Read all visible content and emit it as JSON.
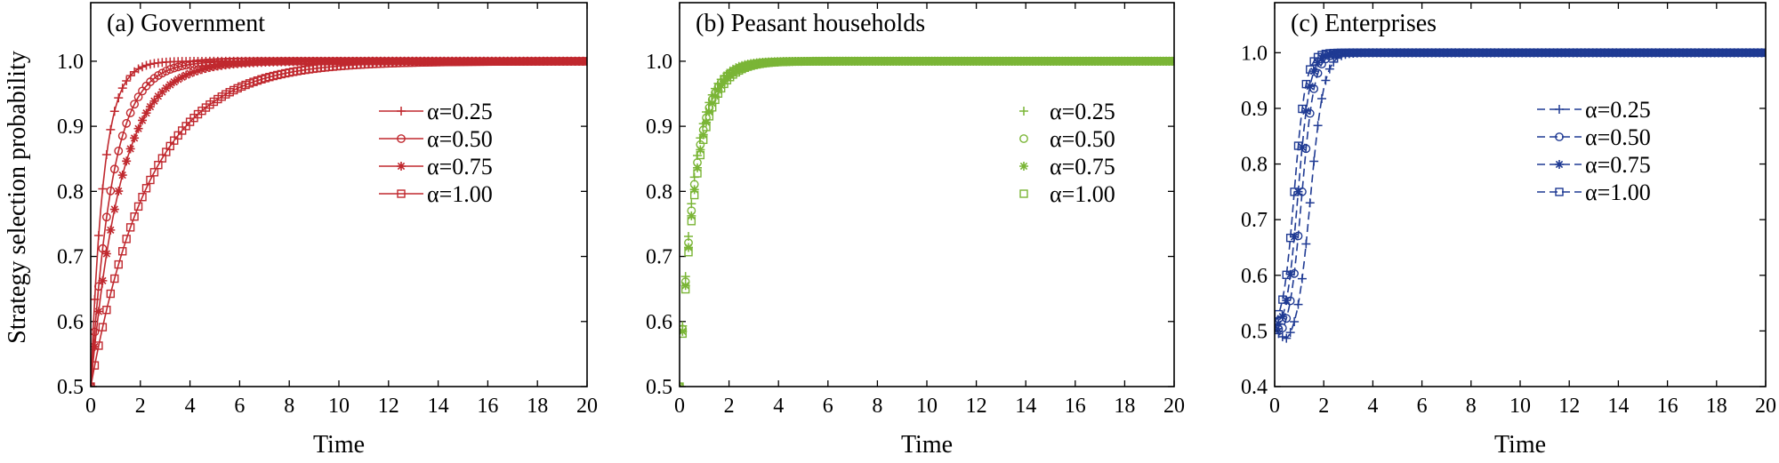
{
  "figure": {
    "ylabel": "Strategy selection probability"
  },
  "chart_data": [
    {
      "type": "line",
      "title": "(a) Government",
      "xlabel": "Time",
      "xlim": [
        0,
        20
      ],
      "ylim": [
        0.5,
        1.09
      ],
      "xticks": [
        0,
        2,
        4,
        6,
        8,
        10,
        12,
        14,
        16,
        18,
        20
      ],
      "yticks": [
        0.5,
        0.6,
        0.7,
        0.8,
        0.9,
        1.0
      ],
      "ytick_labels": [
        "0.5",
        "0.6",
        "0.7",
        "0.8",
        "0.9",
        "1.0"
      ],
      "color": "#c0282e",
      "line_style": "solid",
      "legend_position": "center-right",
      "y0": 0.5,
      "series": [
        {
          "name": "α=0.25",
          "marker": "plus",
          "rate": 1.95
        },
        {
          "name": "α=0.50",
          "marker": "circle",
          "rate": 1.15
        },
        {
          "name": "α=0.75",
          "marker": "star",
          "rate": 0.82
        },
        {
          "name": "α=1.00",
          "marker": "square",
          "rate": 0.42
        }
      ]
    },
    {
      "type": "scatter",
      "title": "(b) Peasant households",
      "xlabel": "Time",
      "xlim": [
        0,
        20
      ],
      "ylim": [
        0.5,
        1.09
      ],
      "xticks": [
        0,
        2,
        4,
        6,
        8,
        10,
        12,
        14,
        16,
        18,
        20
      ],
      "yticks": [
        0.5,
        0.6,
        0.7,
        0.8,
        0.9,
        1.0
      ],
      "ytick_labels": [
        "0.5",
        "0.6",
        "0.7",
        "0.8",
        "0.9",
        "1.0"
      ],
      "color": "#7ab536",
      "line_style": "none",
      "legend_position": "center-right",
      "y0": 0.5,
      "series": [
        {
          "name": "α=0.25",
          "marker": "plus",
          "rate": 1.72
        },
        {
          "name": "α=0.50",
          "marker": "circle",
          "rate": 1.62
        },
        {
          "name": "α=0.75",
          "marker": "star",
          "rate": 1.55
        },
        {
          "name": "α=1.00",
          "marker": "square",
          "rate": 1.48
        }
      ]
    },
    {
      "type": "line",
      "title": "(c) Enterprises",
      "xlabel": "Time",
      "xlim": [
        0,
        20
      ],
      "ylim": [
        0.4,
        1.09
      ],
      "xticks": [
        0,
        2,
        4,
        6,
        8,
        10,
        12,
        14,
        16,
        18,
        20
      ],
      "yticks": [
        0.4,
        0.5,
        0.6,
        0.7,
        0.8,
        0.9,
        1.0
      ],
      "ytick_labels": [
        "0.4",
        "0.5",
        "0.6",
        "0.7",
        "0.8",
        "0.9",
        "1.0"
      ],
      "color": "#1f3a93",
      "line_style": "dashed",
      "legend_position": "center-right",
      "series": [
        {
          "name": "α=0.25",
          "marker": "plus",
          "dip_min": 0.47,
          "dip_t": 0.5,
          "midpoint": 1.45,
          "steepness": 3.6
        },
        {
          "name": "α=0.50",
          "marker": "circle",
          "dip_min": 0.48,
          "dip_t": 0.35,
          "midpoint": 1.1,
          "steepness": 3.9
        },
        {
          "name": "α=0.75",
          "marker": "star",
          "dip_min": 0.49,
          "dip_t": 0.25,
          "midpoint": 0.95,
          "steepness": 4.1
        },
        {
          "name": "α=1.00",
          "marker": "square",
          "dip_min": 0.5,
          "dip_t": 0.15,
          "midpoint": 0.8,
          "steepness": 4.3
        }
      ]
    }
  ]
}
